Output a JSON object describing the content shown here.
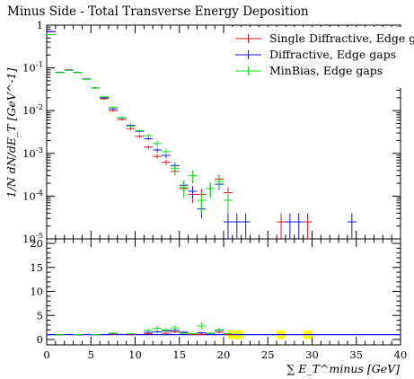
{
  "chart_data": {
    "type": "scatter",
    "title": "Minus Side - Total Transverse Energy Deposition",
    "xlabel": "∑ E_T^minus [GeV]",
    "ylabel": "1/N dN/dE_T [GeV^-1]",
    "xlim": [
      0,
      40
    ],
    "ylim": [
      1e-05,
      1
    ],
    "yscale": "log",
    "ratio_ylim": [
      0,
      20
    ],
    "x_ticks": [
      "0",
      "5",
      "10",
      "15",
      "20",
      "25",
      "30",
      "35",
      "40"
    ],
    "y_ticks": [
      "1",
      "10^-1",
      "10^-2",
      "10^-3",
      "10^-4",
      "10^-5"
    ],
    "ratio_ticks": [
      "0",
      "5",
      "10",
      "15",
      "20"
    ],
    "legend_position": "top-right",
    "series": [
      {
        "name": "Single Diffractive, Edge gaps",
        "color": "#e0141e",
        "points": [
          {
            "x": 0.5,
            "y": 0.7,
            "err": 0.02
          },
          {
            "x": 1.5,
            "y": 0.078,
            "err": 0.003
          },
          {
            "x": 2.5,
            "y": 0.09,
            "err": 0.003
          },
          {
            "x": 3.5,
            "y": 0.078,
            "err": 0.003
          },
          {
            "x": 4.5,
            "y": 0.055,
            "err": 0.002
          },
          {
            "x": 5.5,
            "y": 0.034,
            "err": 0.0015
          },
          {
            "x": 6.5,
            "y": 0.019,
            "err": 0.001
          },
          {
            "x": 7.5,
            "y": 0.01,
            "err": 0.0006
          },
          {
            "x": 8.5,
            "y": 0.0062,
            "err": 0.0004
          },
          {
            "x": 9.5,
            "y": 0.0038,
            "err": 0.0003
          },
          {
            "x": 10.5,
            "y": 0.0025,
            "err": 0.0002
          },
          {
            "x": 11.5,
            "y": 0.0014,
            "err": 0.00015
          },
          {
            "x": 12.5,
            "y": 0.00085,
            "err": 0.0001
          },
          {
            "x": 13.5,
            "y": 0.00062,
            "err": 9e-05
          },
          {
            "x": 14.5,
            "y": 0.00038,
            "err": 7e-05
          },
          {
            "x": 15.5,
            "y": 0.00015,
            "err": 4e-05
          },
          {
            "x": 16.5,
            "y": 0.00011,
            "err": 4e-05
          },
          {
            "x": 17.5,
            "y": 0.00011,
            "err": 4e-05
          },
          {
            "x": 19.5,
            "y": 0.00025,
            "err": 6e-05
          },
          {
            "x": 20.5,
            "y": 0.00012,
            "err": 4e-05
          },
          {
            "x": 26.5,
            "y": 2.5e-05,
            "err": 1.5e-05
          },
          {
            "x": 29.5,
            "y": 2.5e-05,
            "err": 1.5e-05
          }
        ]
      },
      {
        "name": "Diffractive, Edge gaps",
        "color": "#1414e0",
        "points": [
          {
            "x": 0.5,
            "y": 0.71,
            "err": 0.02
          },
          {
            "x": 1.5,
            "y": 0.079,
            "err": 0.003
          },
          {
            "x": 2.5,
            "y": 0.088,
            "err": 0.003
          },
          {
            "x": 3.5,
            "y": 0.079,
            "err": 0.003
          },
          {
            "x": 4.5,
            "y": 0.055,
            "err": 0.002
          },
          {
            "x": 5.5,
            "y": 0.034,
            "err": 0.0015
          },
          {
            "x": 6.5,
            "y": 0.02,
            "err": 0.001
          },
          {
            "x": 7.5,
            "y": 0.011,
            "err": 0.0006
          },
          {
            "x": 8.5,
            "y": 0.0068,
            "err": 0.0004
          },
          {
            "x": 9.5,
            "y": 0.0045,
            "err": 0.0003
          },
          {
            "x": 10.5,
            "y": 0.0033,
            "err": 0.00025
          },
          {
            "x": 11.5,
            "y": 0.0022,
            "err": 0.0002
          },
          {
            "x": 12.5,
            "y": 0.0012,
            "err": 0.00015
          },
          {
            "x": 13.5,
            "y": 0.0009,
            "err": 0.00012
          },
          {
            "x": 14.5,
            "y": 0.00052,
            "err": 9e-05
          },
          {
            "x": 15.5,
            "y": 0.00018,
            "err": 5e-05
          },
          {
            "x": 16.5,
            "y": 0.00013,
            "err": 4e-05
          },
          {
            "x": 17.5,
            "y": 5e-05,
            "err": 2e-05
          },
          {
            "x": 18.5,
            "y": 0.00015,
            "err": 5e-05
          },
          {
            "x": 19.5,
            "y": 0.00019,
            "err": 5e-05
          },
          {
            "x": 20.5,
            "y": 2.5e-05,
            "err": 1.5e-05
          },
          {
            "x": 21.5,
            "y": 2.5e-05,
            "err": 1.5e-05
          },
          {
            "x": 22.5,
            "y": 2.5e-05,
            "err": 1.5e-05
          },
          {
            "x": 27.5,
            "y": 2.5e-05,
            "err": 1.5e-05
          },
          {
            "x": 28.5,
            "y": 2.5e-05,
            "err": 1.5e-05
          },
          {
            "x": 34.5,
            "y": 2.5e-05,
            "err": 1.5e-05
          }
        ]
      },
      {
        "name": "MinBias, Edge gaps",
        "color": "#14e014",
        "points": [
          {
            "x": 0.5,
            "y": 0.6,
            "err": 0.02
          },
          {
            "x": 1.5,
            "y": 0.078,
            "err": 0.003
          },
          {
            "x": 2.5,
            "y": 0.088,
            "err": 0.003
          },
          {
            "x": 3.5,
            "y": 0.078,
            "err": 0.003
          },
          {
            "x": 4.5,
            "y": 0.054,
            "err": 0.002
          },
          {
            "x": 5.5,
            "y": 0.034,
            "err": 0.0015
          },
          {
            "x": 6.5,
            "y": 0.021,
            "err": 0.0012
          },
          {
            "x": 7.5,
            "y": 0.012,
            "err": 0.0008
          },
          {
            "x": 8.5,
            "y": 0.0069,
            "err": 0.0005
          },
          {
            "x": 9.5,
            "y": 0.0043,
            "err": 0.0004
          },
          {
            "x": 10.5,
            "y": 0.0034,
            "err": 0.0003
          },
          {
            "x": 11.5,
            "y": 0.0026,
            "err": 0.0003
          },
          {
            "x": 12.5,
            "y": 0.0017,
            "err": 0.00025
          },
          {
            "x": 13.5,
            "y": 0.0011,
            "err": 0.0002
          },
          {
            "x": 14.5,
            "y": 0.00045,
            "err": 0.00012
          },
          {
            "x": 15.5,
            "y": 0.00016,
            "err": 7e-05
          },
          {
            "x": 16.5,
            "y": 0.0003,
            "err": 0.0001
          },
          {
            "x": 17.5,
            "y": 8e-05,
            "err": 4e-05
          },
          {
            "x": 18.5,
            "y": 0.00015,
            "err": 6e-05
          },
          {
            "x": 19.5,
            "y": 0.00022,
            "err": 7e-05
          },
          {
            "x": 20.5,
            "y": 8e-05,
            "err": 4e-05
          }
        ]
      }
    ],
    "ratio": {
      "series": [
        {
          "name": "Single Diffractive, Edge gaps",
          "color": "#e0141e",
          "points": [
            [
              1,
              1.0
            ],
            [
              3,
              1.0
            ],
            [
              5,
              1.0
            ],
            [
              7,
              1.1
            ],
            [
              9,
              1.0
            ],
            [
              11,
              1.2
            ],
            [
              13,
              1.3
            ],
            [
              14,
              1.6
            ],
            [
              15,
              1.3
            ],
            [
              16,
              1.0
            ],
            [
              17,
              1.1
            ],
            [
              18,
              1.3
            ],
            [
              19,
              1.5
            ],
            [
              20,
              1.0
            ]
          ]
        },
        {
          "name": "Diffractive, Edge gaps",
          "color": "#1414e0",
          "points": [
            [
              1,
              1.0
            ],
            [
              3,
              1.0
            ],
            [
              5,
              1.0
            ],
            [
              7,
              1.2
            ],
            [
              9,
              1.1
            ],
            [
              11,
              1.5
            ],
            [
              12,
              1.6
            ],
            [
              13,
              1.8
            ],
            [
              14,
              1.9
            ],
            [
              15,
              1.5
            ],
            [
              16,
              1.2
            ],
            [
              17,
              1.4
            ],
            [
              18,
              1.1
            ],
            [
              19,
              1.9
            ],
            [
              20,
              1.2
            ]
          ]
        },
        {
          "name": "MinBias, Edge gaps",
          "color": "#14e014",
          "points": [
            [
              1,
              1.0
            ],
            [
              3,
              1.0
            ],
            [
              5,
              1.0
            ],
            [
              7,
              1.3
            ],
            [
              9,
              1.2
            ],
            [
              11,
              1.9
            ],
            [
              12,
              2.3
            ],
            [
              13,
              2.0
            ],
            [
              14,
              2.4
            ],
            [
              15,
              1.3
            ],
            [
              16,
              1.2
            ],
            [
              17,
              2.8
            ],
            [
              18,
              1.3
            ],
            [
              19,
              2.0
            ],
            [
              20,
              1.2
            ]
          ]
        }
      ],
      "uncertainty_band_color": "#ffff00",
      "uncertainty_bands": [
        [
          20.5,
          22.2
        ],
        [
          26.0,
          27.0
        ],
        [
          29.0,
          30.0
        ]
      ]
    },
    "stat_colors": {
      "frame": "#000000",
      "reference_line": "#1414e0"
    }
  }
}
